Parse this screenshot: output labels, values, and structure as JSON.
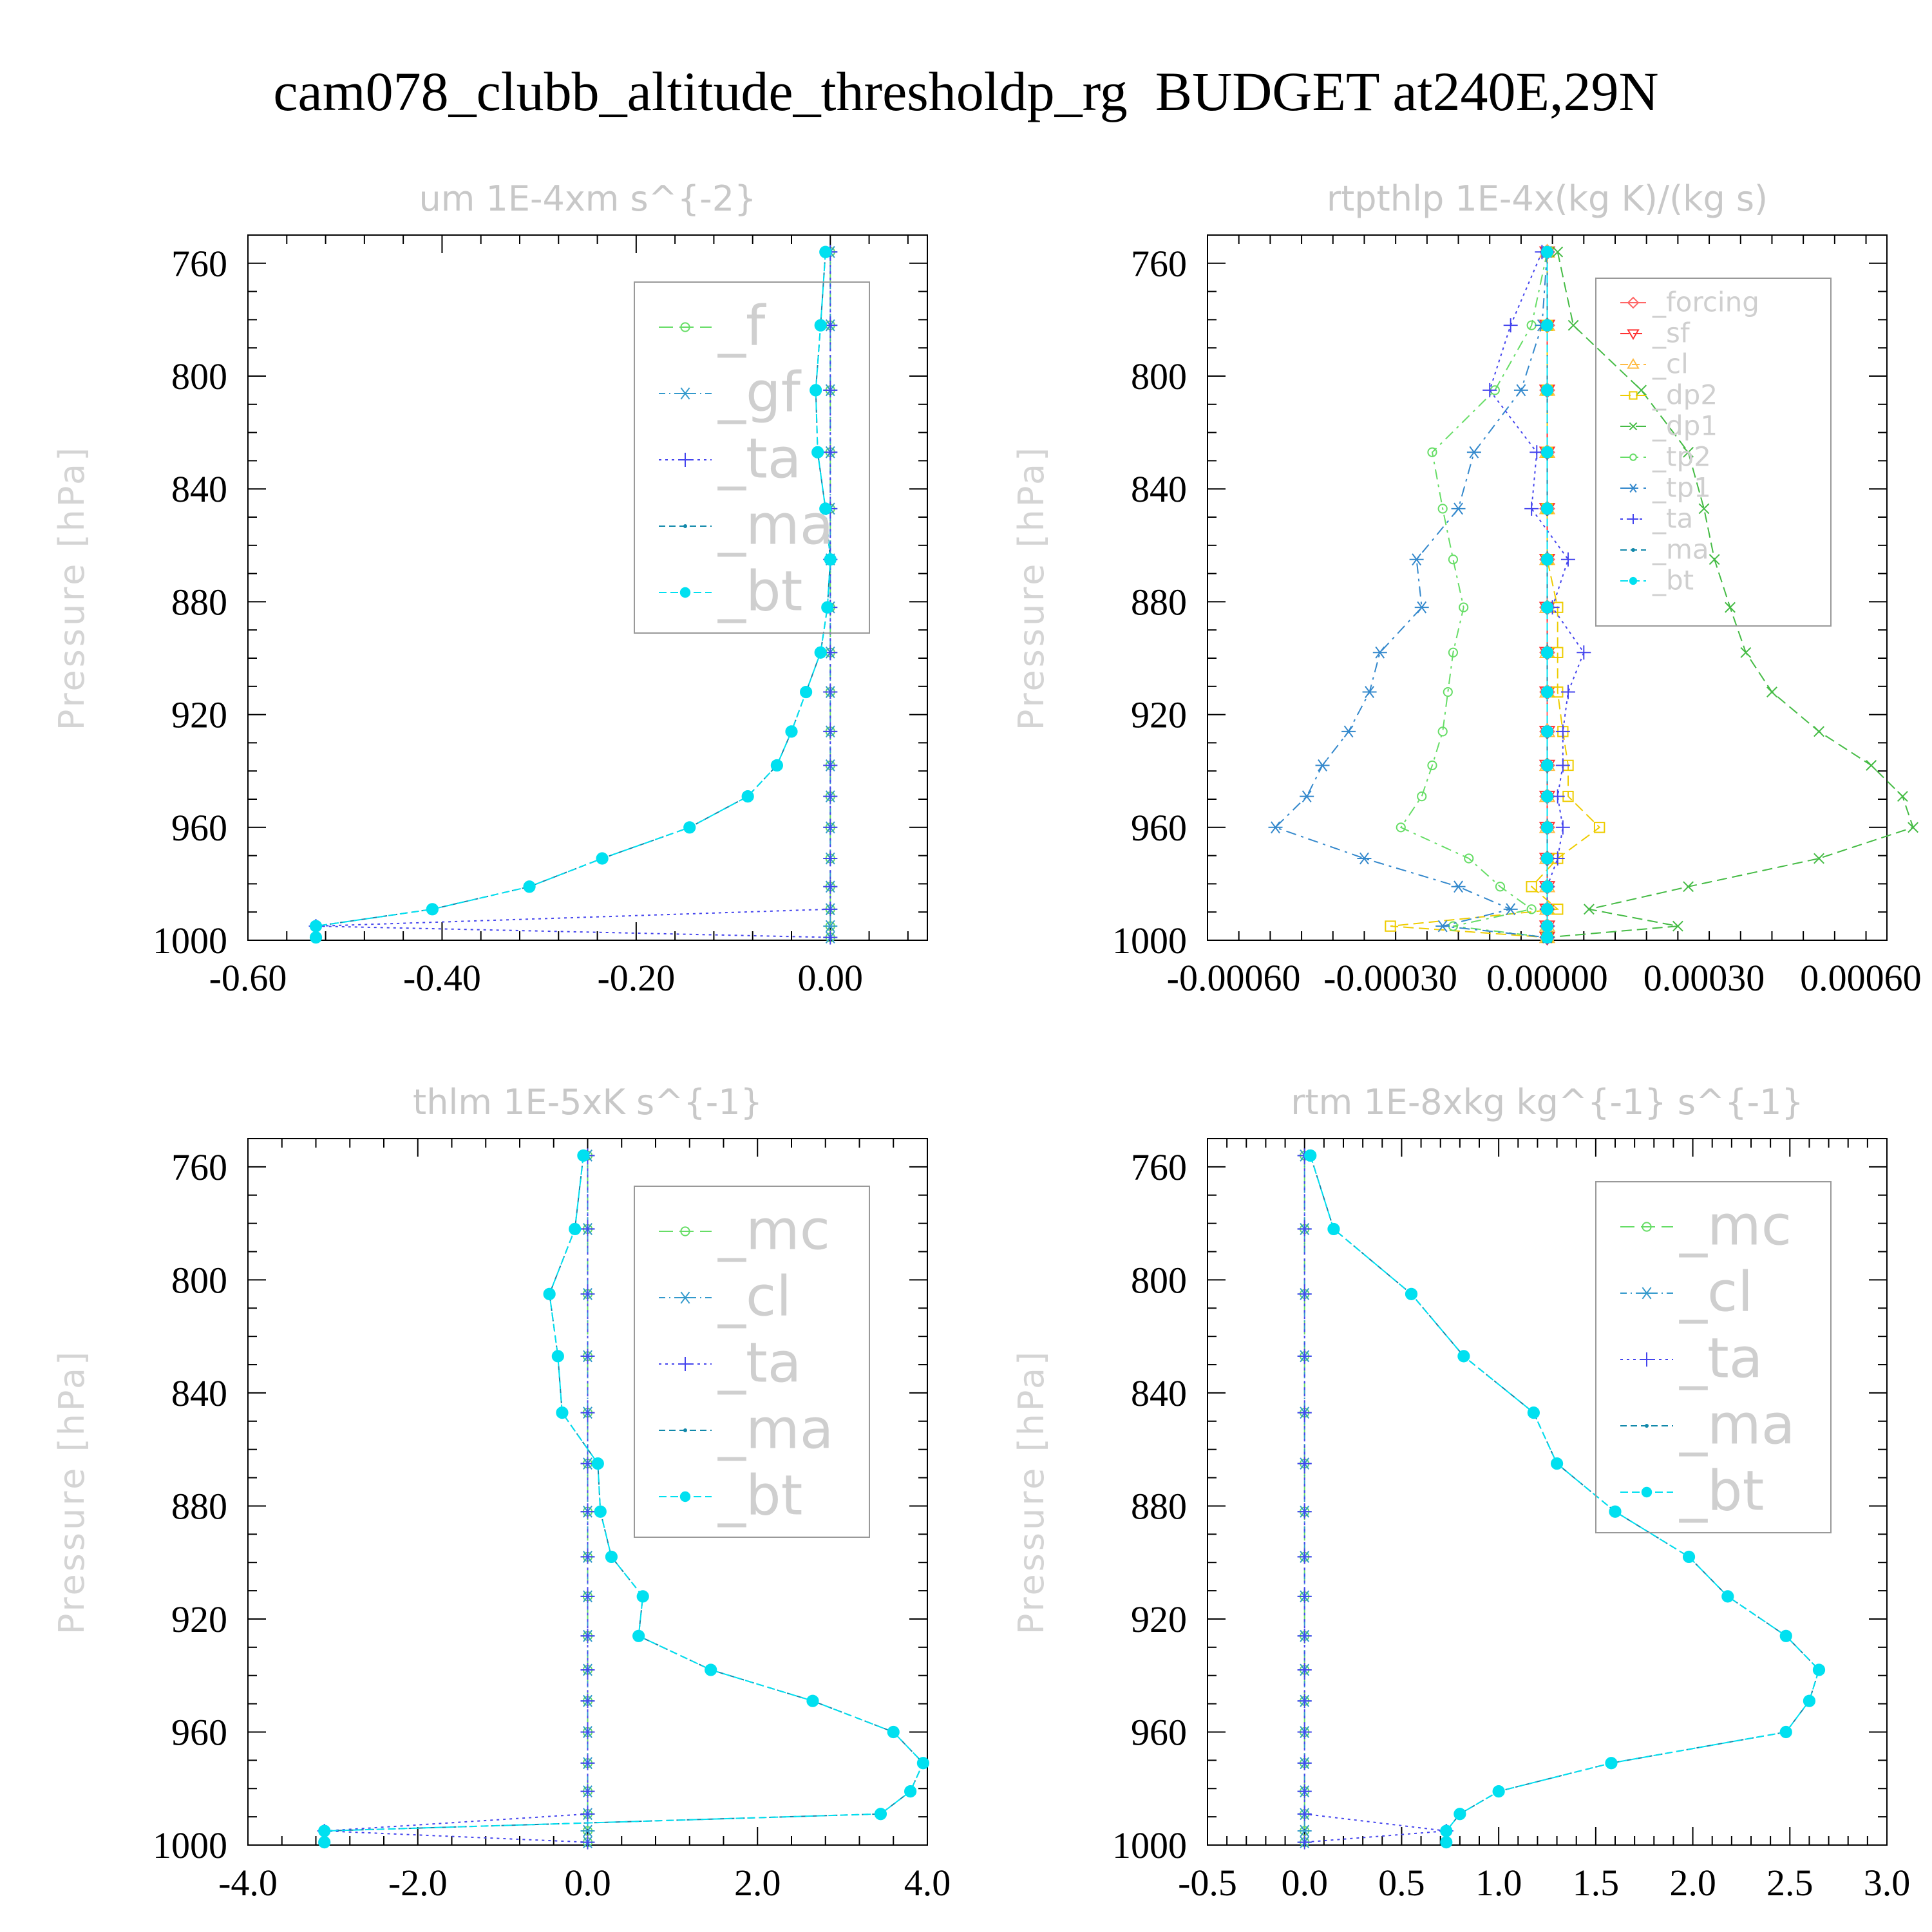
{
  "title": "cam078_clubb_altitude_thresholdp_rg  BUDGET at240E,29N",
  "ylabel": "Pressure [hPa]",
  "colors": {
    "_f": "#66dd66",
    "_gf": "#3399cc",
    "_ta": "#4444ee",
    "_ma": "#1188aa",
    "_bt": "#00e0f0",
    "_forcing": "#ff6666",
    "_sf": "#ff4444",
    "_cl_orange": "#ffbb44",
    "_dp2": "#eecc00",
    "_dp1": "#44bb44",
    "_tp2": "#66dd66",
    "_tp1": "#3388cc",
    "_mc": "#66dd66",
    "_cl": "#3399cc"
  },
  "chart_data": [
    {
      "type": "line",
      "title": "um  1E-4xm s^{-2}",
      "ylabel": "Pressure [hPa]",
      "xlim": [
        -0.6,
        0.1
      ],
      "ylim": [
        1000,
        750
      ],
      "xticks": [
        "-0.60",
        "-0.40",
        "-0.20",
        "0.00"
      ],
      "xtick_values": [
        -0.6,
        -0.4,
        -0.2,
        0.0
      ],
      "yticks": [
        "760",
        "800",
        "840",
        "880",
        "920",
        "960",
        "1000"
      ],
      "y": [
        756,
        782,
        805,
        827,
        847,
        865,
        882,
        898,
        912,
        926,
        938,
        949,
        960,
        971,
        981,
        989,
        995,
        999
      ],
      "series": [
        {
          "name": "_f",
          "values": [
            0,
            0,
            0,
            0,
            0,
            0,
            0,
            0,
            0,
            0,
            0,
            0,
            0,
            0,
            0,
            0,
            0,
            0
          ]
        },
        {
          "name": "_gf",
          "values": [
            0,
            0,
            0,
            0,
            0,
            0,
            0,
            0,
            0,
            0,
            0,
            0,
            0,
            0,
            0,
            0,
            0,
            0
          ]
        },
        {
          "name": "_ta",
          "values": [
            0,
            0,
            0,
            0,
            0,
            0,
            0,
            0,
            0,
            0,
            0,
            0,
            0,
            0,
            0,
            0,
            -0.53,
            0
          ]
        },
        {
          "name": "_ma",
          "values": [
            -0.005,
            -0.01,
            -0.015,
            -0.013,
            -0.005,
            0.0,
            -0.003,
            -0.01,
            -0.025,
            -0.04,
            -0.055,
            -0.085,
            -0.145,
            -0.235,
            -0.31,
            -0.41,
            -0.53,
            -0.53
          ]
        },
        {
          "name": "_bt",
          "values": [
            -0.005,
            -0.01,
            -0.015,
            -0.013,
            -0.005,
            0.0,
            -0.003,
            -0.01,
            -0.025,
            -0.04,
            -0.055,
            -0.085,
            -0.145,
            -0.235,
            -0.31,
            -0.41,
            -0.53,
            -0.53
          ]
        }
      ]
    },
    {
      "type": "line",
      "title": "rtpthlp  1E-4x(kg K)/(kg s)",
      "ylabel": "Pressure [hPa]",
      "xlim": [
        -0.00065,
        0.00065
      ],
      "ylim": [
        1000,
        750
      ],
      "xticks": [
        "-0.00060",
        "-0.00030",
        "0.00000",
        "0.00030",
        "0.00060"
      ],
      "xtick_values": [
        -0.0006,
        -0.0003,
        0.0,
        0.0003,
        0.0006
      ],
      "yticks": [
        "760",
        "800",
        "840",
        "880",
        "920",
        "960",
        "1000"
      ],
      "y": [
        756,
        782,
        805,
        827,
        847,
        865,
        882,
        898,
        912,
        926,
        938,
        949,
        960,
        971,
        981,
        989,
        995,
        999
      ],
      "series": [
        {
          "name": "_forcing",
          "values": [
            0,
            0,
            0,
            0,
            0,
            0,
            0,
            0,
            0,
            0,
            0,
            0,
            0,
            0,
            0,
            0,
            0,
            0
          ]
        },
        {
          "name": "_sf",
          "values": [
            0,
            0,
            0,
            0,
            0,
            0,
            0,
            0,
            0,
            0,
            0,
            0,
            0,
            0,
            0,
            0,
            0,
            0
          ]
        },
        {
          "name": "_cl",
          "values": [
            0,
            0,
            0,
            0,
            0,
            0,
            0,
            0,
            0,
            0,
            0,
            0,
            0,
            0,
            0,
            0,
            0,
            0
          ]
        },
        {
          "name": "_dp2",
          "values": [
            0,
            0,
            0,
            0,
            0,
            0,
            2e-05,
            2e-05,
            2e-05,
            3e-05,
            4e-05,
            4e-05,
            0.0001,
            2e-05,
            -3e-05,
            2e-05,
            -0.0003,
            0
          ]
        },
        {
          "name": "_dp1",
          "values": [
            2e-05,
            5e-05,
            0.00018,
            0.00027,
            0.0003,
            0.00032,
            0.00035,
            0.00038,
            0.00043,
            0.00052,
            0.00062,
            0.00068,
            0.0007,
            0.00052,
            0.00027,
            8e-05,
            0.00025,
            0
          ]
        },
        {
          "name": "_tp2",
          "values": [
            0,
            -3e-05,
            -0.0001,
            -0.00022,
            -0.0002,
            -0.00018,
            -0.00016,
            -0.00018,
            -0.00019,
            -0.0002,
            -0.00022,
            -0.00024,
            -0.00028,
            -0.00015,
            -9e-05,
            -3e-05,
            -0.00018,
            0
          ]
        },
        {
          "name": "_tp1",
          "values": [
            0,
            -1e-05,
            -5e-05,
            -0.00014,
            -0.00017,
            -0.00025,
            -0.00024,
            -0.00032,
            -0.00034,
            -0.00038,
            -0.00043,
            -0.00046,
            -0.00052,
            -0.00035,
            -0.00017,
            -7e-05,
            -0.0002,
            0
          ]
        },
        {
          "name": "_ta",
          "values": [
            -1e-05,
            -7e-05,
            -0.00011,
            -2e-05,
            -3e-05,
            4e-05,
            1e-05,
            7e-05,
            4e-05,
            3e-05,
            3e-05,
            2e-05,
            3e-05,
            2e-05,
            0,
            0,
            0,
            0
          ]
        },
        {
          "name": "_ma",
          "values": [
            0,
            0,
            0,
            0,
            0,
            0,
            0,
            0,
            0,
            0,
            0,
            0,
            0,
            0,
            0,
            0,
            0,
            0
          ]
        },
        {
          "name": "_bt",
          "values": [
            0,
            0,
            0,
            0,
            0,
            0,
            0,
            0,
            0,
            0,
            0,
            0,
            0,
            0,
            0,
            0,
            0,
            0
          ]
        }
      ]
    },
    {
      "type": "line",
      "title": "thlm  1E-5xK s^{-1}",
      "ylabel": "Pressure [hPa]",
      "xlim": [
        -4.0,
        4.0
      ],
      "ylim": [
        1000,
        750
      ],
      "xticks": [
        "-4.0",
        "-2.0",
        "0.0",
        "2.0",
        "4.0"
      ],
      "xtick_values": [
        -4.0,
        -2.0,
        0.0,
        2.0,
        4.0
      ],
      "yticks": [
        "760",
        "800",
        "840",
        "880",
        "920",
        "960",
        "1000"
      ],
      "y": [
        756,
        782,
        805,
        827,
        847,
        865,
        882,
        898,
        912,
        926,
        938,
        949,
        960,
        971,
        981,
        989,
        995,
        999
      ],
      "series": [
        {
          "name": "_mc",
          "values": [
            0,
            0,
            0,
            0,
            0,
            0,
            0,
            0,
            0,
            0,
            0,
            0,
            0,
            0,
            0,
            0,
            0,
            0
          ]
        },
        {
          "name": "_cl",
          "values": [
            0,
            0,
            0,
            0,
            0,
            0,
            0,
            0,
            0,
            0,
            0,
            0,
            0,
            0,
            0,
            0,
            0,
            0
          ]
        },
        {
          "name": "_ta",
          "values": [
            0,
            0,
            0,
            0,
            0,
            0,
            0,
            0,
            0,
            0,
            0,
            0,
            0,
            0,
            0,
            0,
            -3.1,
            0
          ]
        },
        {
          "name": "_ma",
          "values": [
            -0.05,
            -0.15,
            -0.45,
            -0.35,
            -0.3,
            0.12,
            0.15,
            0.28,
            0.65,
            0.6,
            1.45,
            2.65,
            3.6,
            3.95,
            3.8,
            3.45,
            -3.1,
            -3.1
          ]
        },
        {
          "name": "_bt",
          "values": [
            -0.05,
            -0.15,
            -0.45,
            -0.35,
            -0.3,
            0.12,
            0.15,
            0.28,
            0.65,
            0.6,
            1.45,
            2.65,
            3.6,
            3.95,
            3.8,
            3.45,
            -3.1,
            -3.1
          ]
        }
      ]
    },
    {
      "type": "line",
      "title": "rtm  1E-8xkg kg^{-1} s^{-1}",
      "ylabel": "Pressure [hPa]",
      "xlim": [
        -0.5,
        3.0
      ],
      "ylim": [
        1000,
        750
      ],
      "xticks": [
        "-0.5",
        "0.0",
        "0.5",
        "1.0",
        "1.5",
        "2.0",
        "2.5",
        "3.0"
      ],
      "xtick_values": [
        -0.5,
        0.0,
        0.5,
        1.0,
        1.5,
        2.0,
        2.5,
        3.0
      ],
      "yticks": [
        "760",
        "800",
        "840",
        "880",
        "920",
        "960",
        "1000"
      ],
      "y": [
        756,
        782,
        805,
        827,
        847,
        865,
        882,
        898,
        912,
        926,
        938,
        949,
        960,
        971,
        981,
        989,
        995,
        999
      ],
      "series": [
        {
          "name": "_mc",
          "values": [
            0,
            0,
            0,
            0,
            0,
            0,
            0,
            0,
            0,
            0,
            0,
            0,
            0,
            0,
            0,
            0,
            0,
            0
          ]
        },
        {
          "name": "_cl",
          "values": [
            0,
            0,
            0,
            0,
            0,
            0,
            0,
            0,
            0,
            0,
            0,
            0,
            0,
            0,
            0,
            0,
            0,
            0
          ]
        },
        {
          "name": "_ta",
          "values": [
            0,
            0,
            0,
            0,
            0,
            0,
            0,
            0,
            0,
            0,
            0,
            0,
            0,
            0,
            0,
            0,
            0.73,
            0
          ]
        },
        {
          "name": "_ma",
          "values": [
            0.03,
            0.15,
            0.55,
            0.82,
            1.18,
            1.3,
            1.6,
            1.98,
            2.18,
            2.48,
            2.65,
            2.6,
            2.48,
            1.58,
            1.0,
            0.8,
            0.73,
            0.73
          ]
        },
        {
          "name": "_bt",
          "values": [
            0.03,
            0.15,
            0.55,
            0.82,
            1.18,
            1.3,
            1.6,
            1.98,
            2.18,
            2.48,
            2.65,
            2.6,
            2.48,
            1.58,
            1.0,
            0.8,
            0.73,
            0.73
          ]
        }
      ]
    }
  ]
}
